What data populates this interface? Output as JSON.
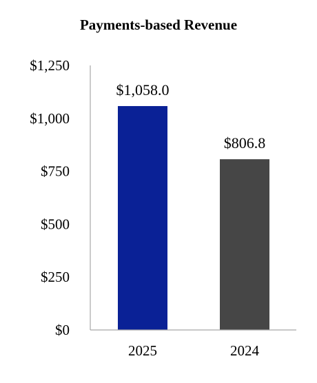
{
  "chart_data": {
    "type": "bar",
    "title": "Payments-based Revenue",
    "xlabel": "",
    "ylabel": "",
    "categories": [
      "2025",
      "2024"
    ],
    "values": [
      1058.0,
      806.8
    ],
    "data_labels": [
      "$1,058.0",
      "$806.8"
    ],
    "bar_colors": [
      "#0A2196",
      "#464646"
    ],
    "ylim": [
      0,
      1250
    ],
    "y_ticks": [
      0,
      250,
      500,
      750,
      1000,
      1250
    ],
    "y_tick_labels": [
      "$0",
      "$250",
      "$500",
      "$750",
      "$1,000",
      "$1,250"
    ],
    "grid": false,
    "legend": "none",
    "axis_color": "#A6A6A6"
  }
}
